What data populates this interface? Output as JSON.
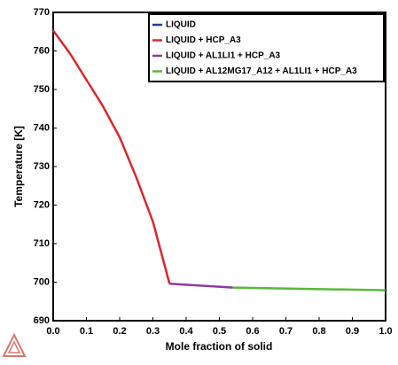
{
  "chart_data": {
    "type": "line",
    "x_label": "Mole fraction of solid",
    "y_label": "Temperature [K]",
    "xlim": [
      0,
      1
    ],
    "ylim": [
      690,
      770
    ],
    "xticks": [
      {
        "value": 0,
        "label": "0.0"
      },
      0.1,
      0.2,
      0.3,
      0.4,
      0.5,
      0.6,
      0.7,
      0.8,
      0.9,
      {
        "value": 1,
        "label": "1.0"
      }
    ],
    "yticks": [
      690,
      700,
      710,
      720,
      730,
      740,
      750,
      760,
      770
    ],
    "legend": "top-right",
    "series": [
      {
        "name": "LIQUID",
        "color": "#1f3f9a",
        "x": [
          0
        ],
        "values": [
          765.3
        ]
      },
      {
        "name": "LIQUID + HCP_A3",
        "color": "#e0262c",
        "x": [
          0,
          0.05,
          0.1,
          0.15,
          0.2,
          0.25,
          0.3,
          0.35
        ],
        "values": [
          765.3,
          759.4,
          752.5,
          745.6,
          737.6,
          727.2,
          715.7,
          699.6
        ]
      },
      {
        "name": "LIQUID + AL1LI1 + HCP_A3",
        "color": "#8e3a9d",
        "x": [
          0.35,
          0.54
        ],
        "values": [
          699.6,
          698.6
        ]
      },
      {
        "name": "LIQUID + AL12MG17_A12 + AL1LI1 + HCP_A3",
        "color": "#5bb83a",
        "x": [
          0.54,
          1
        ],
        "values": [
          698.6,
          697.9
        ]
      }
    ]
  }
}
